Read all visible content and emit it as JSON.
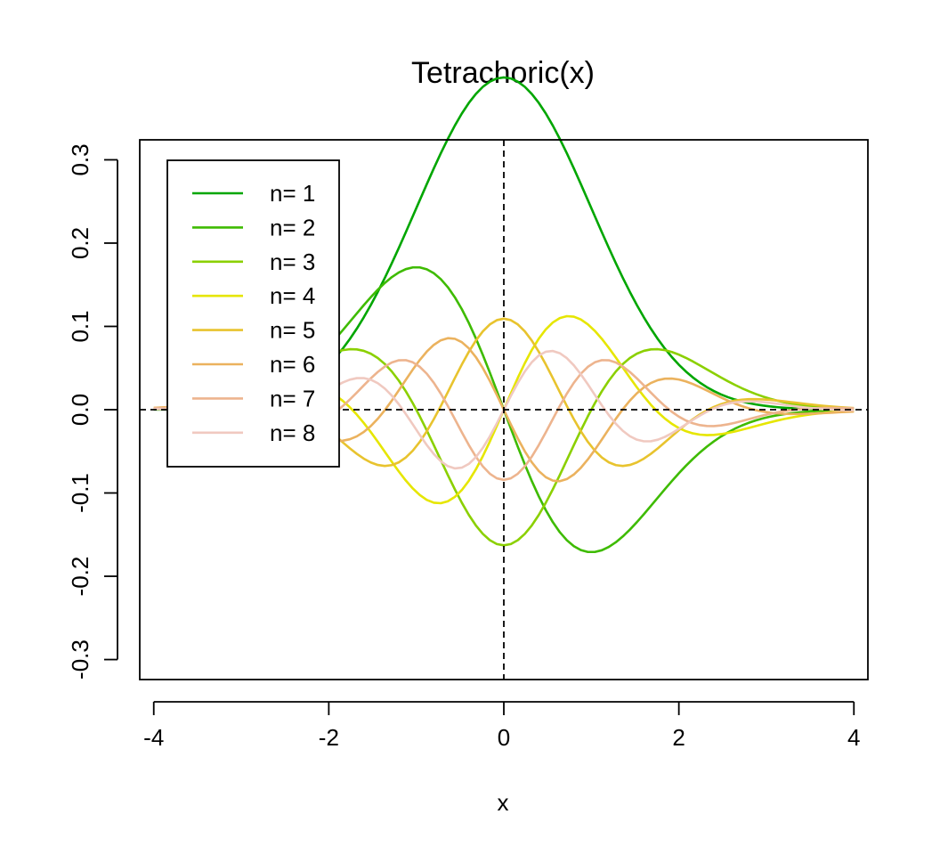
{
  "chart_data": {
    "type": "line",
    "title": "Tetrachoric(x)",
    "xlabel": "x",
    "ylabel": "",
    "xlim": [
      -4.16,
      4.16
    ],
    "ylim": [
      -0.324,
      0.324
    ],
    "x_ticks": [
      -4,
      -2,
      0,
      2,
      4
    ],
    "x_tick_labels": [
      "-4",
      "-2",
      "0",
      "2",
      "4"
    ],
    "y_ticks": [
      -0.3,
      -0.2,
      -0.1,
      0.0,
      0.1,
      0.2,
      0.3
    ],
    "y_tick_labels": [
      "-0.3",
      "-0.2",
      "-0.1",
      "0.0",
      "0.1",
      "0.2",
      "0.3"
    ],
    "reference_lines": {
      "horizontal_y": 0,
      "vertical_x": 0,
      "style": "dashed"
    },
    "grid": false,
    "legend_position": "top-left",
    "x_range_sampled": [
      -4,
      4
    ],
    "n_points": 101,
    "series": [
      {
        "name": "n= 1",
        "n": 1,
        "color": "#00A600"
      },
      {
        "name": "n= 2",
        "n": 2,
        "color": "#3EBB00"
      },
      {
        "name": "n= 3",
        "n": 3,
        "color": "#8BD000"
      },
      {
        "name": "n= 4",
        "n": 4,
        "color": "#E6E600"
      },
      {
        "name": "n= 5",
        "n": 5,
        "color": "#E8C32E"
      },
      {
        "name": "n= 6",
        "n": 6,
        "color": "#EBB25E"
      },
      {
        "name": "n= 7",
        "n": 7,
        "color": "#EDB48E"
      },
      {
        "name": "n= 8",
        "n": 8,
        "color": "#F0C9C0"
      }
    ]
  }
}
